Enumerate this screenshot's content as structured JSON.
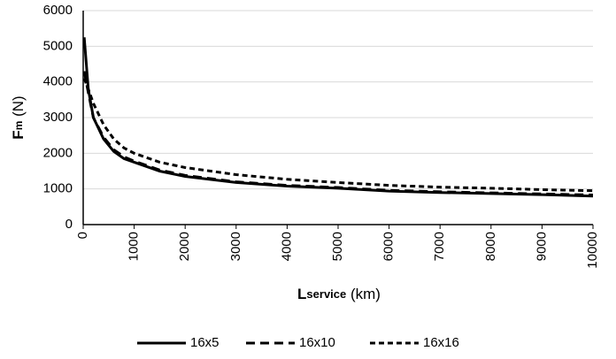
{
  "chart_data": {
    "type": "line",
    "y_label": [
      "F",
      "m",
      " (N)"
    ],
    "x_label": [
      "L",
      "service",
      " (km)"
    ],
    "x": [
      20,
      100,
      200,
      400,
      600,
      800,
      1000,
      1500,
      2000,
      3000,
      4000,
      5000,
      6000,
      7000,
      8000,
      9000,
      10000
    ],
    "series": [
      {
        "name": "16x5",
        "color": "#000000",
        "dash": "solid",
        "values": [
          5250,
          3800,
          3000,
          2400,
          2050,
          1850,
          1750,
          1500,
          1350,
          1180,
          1080,
          1020,
          940,
          900,
          870,
          840,
          800
        ]
      },
      {
        "name": "16x10",
        "color": "#000000",
        "dash": "long",
        "values": [
          4300,
          3700,
          3000,
          2450,
          2100,
          1900,
          1780,
          1530,
          1380,
          1200,
          1100,
          1040,
          960,
          920,
          890,
          860,
          830
        ]
      },
      {
        "name": "16x16",
        "color": "#000000",
        "dash": "short",
        "values": [
          4100,
          3800,
          3400,
          2800,
          2400,
          2150,
          2000,
          1750,
          1600,
          1400,
          1270,
          1180,
          1100,
          1050,
          1020,
          980,
          950
        ]
      }
    ],
    "xlim": [
      0,
      10000
    ],
    "xticks": [
      0,
      1000,
      2000,
      3000,
      4000,
      5000,
      6000,
      7000,
      8000,
      9000,
      10000
    ],
    "ylim": [
      0,
      6000
    ],
    "yticks": [
      0,
      1000,
      2000,
      3000,
      4000,
      5000,
      6000
    ],
    "grid": true,
    "legend": "bottom"
  }
}
